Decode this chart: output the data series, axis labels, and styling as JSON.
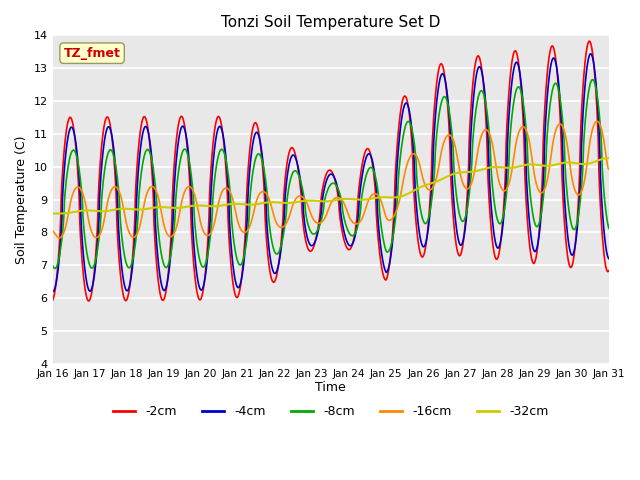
{
  "title": "Tonzi Soil Temperature Set D",
  "xlabel": "Time",
  "ylabel": "Soil Temperature (C)",
  "annotation": "TZ_fmet",
  "ylim": [
    4.0,
    14.0
  ],
  "yticks": [
    4.0,
    5.0,
    6.0,
    7.0,
    8.0,
    9.0,
    10.0,
    11.0,
    12.0,
    13.0,
    14.0
  ],
  "xtick_labels": [
    "Jan 16",
    "Jan 17",
    "Jan 18",
    "Jan 19",
    "Jan 20",
    "Jan 21",
    "Jan 22",
    "Jan 23",
    "Jan 24",
    "Jan 25",
    "Jan 26",
    "Jan 27",
    "Jan 28",
    "Jan 29",
    "Jan 30",
    "Jan 31"
  ],
  "colors": {
    "-2cm": "#ff0000",
    "-4cm": "#0000cc",
    "-8cm": "#00aa00",
    "-16cm": "#ff8800",
    "-32cm": "#cccc00"
  },
  "bg_color": "#e8e8e8"
}
